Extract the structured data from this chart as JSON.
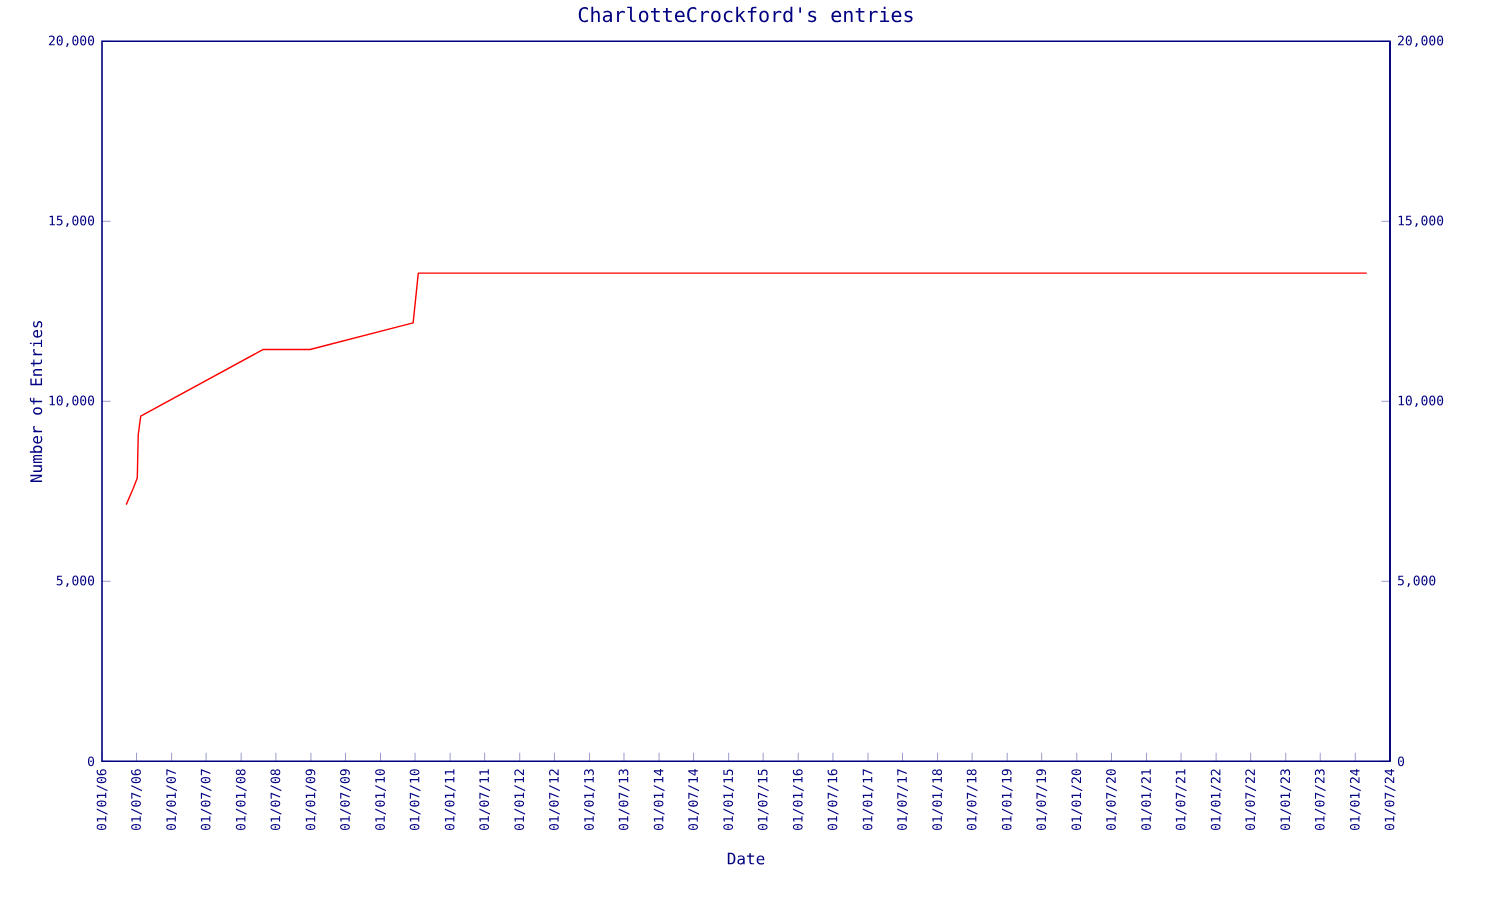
{
  "chart_data": {
    "type": "line",
    "title": "CharlotteCrockford's entries",
    "xlabel": "Date",
    "ylabel": "Number of Entries",
    "series": [
      {
        "color": "#ff0000",
        "x": [
          "2006-05-08",
          "2006-06-13",
          "2006-07-05",
          "2006-07-10",
          "2006-07-23",
          "2008-04-26",
          "2008-12-27",
          "2010-06-21",
          "2010-07-18",
          "2024-03-01"
        ],
        "values": [
          7130,
          7570,
          7870,
          9070,
          9590,
          11440,
          11440,
          12180,
          13560,
          13560
        ]
      }
    ],
    "xlim": [
      "2006-01-01",
      "2024-07-01"
    ],
    "xticks": [
      {
        "value": "2006-01-01",
        "label": "01/01/06"
      },
      {
        "value": "2006-07-01",
        "label": "01/07/06"
      },
      {
        "value": "2007-01-01",
        "label": "01/01/07"
      },
      {
        "value": "2007-07-01",
        "label": "01/07/07"
      },
      {
        "value": "2008-01-01",
        "label": "01/01/08"
      },
      {
        "value": "2008-07-01",
        "label": "01/07/08"
      },
      {
        "value": "2009-01-01",
        "label": "01/01/09"
      },
      {
        "value": "2009-07-01",
        "label": "01/07/09"
      },
      {
        "value": "2010-01-01",
        "label": "01/01/10"
      },
      {
        "value": "2010-07-01",
        "label": "01/07/10"
      },
      {
        "value": "2011-01-01",
        "label": "01/01/11"
      },
      {
        "value": "2011-07-01",
        "label": "01/07/11"
      },
      {
        "value": "2012-01-01",
        "label": "01/01/12"
      },
      {
        "value": "2012-07-01",
        "label": "01/07/12"
      },
      {
        "value": "2013-01-01",
        "label": "01/01/13"
      },
      {
        "value": "2013-07-01",
        "label": "01/07/13"
      },
      {
        "value": "2014-01-01",
        "label": "01/01/14"
      },
      {
        "value": "2014-07-01",
        "label": "01/07/14"
      },
      {
        "value": "2015-01-01",
        "label": "01/01/15"
      },
      {
        "value": "2015-07-01",
        "label": "01/07/15"
      },
      {
        "value": "2016-01-01",
        "label": "01/01/16"
      },
      {
        "value": "2016-07-01",
        "label": "01/07/16"
      },
      {
        "value": "2017-01-01",
        "label": "01/01/17"
      },
      {
        "value": "2017-07-01",
        "label": "01/07/17"
      },
      {
        "value": "2018-01-01",
        "label": "01/01/18"
      },
      {
        "value": "2018-07-01",
        "label": "01/07/18"
      },
      {
        "value": "2019-01-01",
        "label": "01/01/19"
      },
      {
        "value": "2019-07-01",
        "label": "01/07/19"
      },
      {
        "value": "2020-01-01",
        "label": "01/01/20"
      },
      {
        "value": "2020-07-01",
        "label": "01/07/20"
      },
      {
        "value": "2021-01-01",
        "label": "01/01/21"
      },
      {
        "value": "2021-07-01",
        "label": "01/07/21"
      },
      {
        "value": "2022-01-01",
        "label": "01/01/22"
      },
      {
        "value": "2022-07-01",
        "label": "01/07/22"
      },
      {
        "value": "2023-01-01",
        "label": "01/01/23"
      },
      {
        "value": "2023-07-01",
        "label": "01/07/23"
      },
      {
        "value": "2024-01-01",
        "label": "01/01/24"
      },
      {
        "value": "2024-07-01",
        "label": "01/07/24"
      }
    ],
    "ylim": [
      0,
      20000
    ],
    "yticks": [
      0,
      {
        "value": 5000,
        "label": "5,000"
      },
      {
        "value": 10000,
        "label": "10,000"
      },
      {
        "value": 15000,
        "label": "15,000"
      },
      {
        "value": 20000,
        "label": "20,000"
      }
    ],
    "y2lim": [
      0,
      20000
    ],
    "y2ticks": [
      0,
      {
        "value": 5000,
        "label": "5,000"
      },
      {
        "value": 10000,
        "label": "10,000"
      },
      {
        "value": 15000,
        "label": "15,000"
      },
      {
        "value": 20000,
        "label": "20,000"
      }
    ]
  }
}
